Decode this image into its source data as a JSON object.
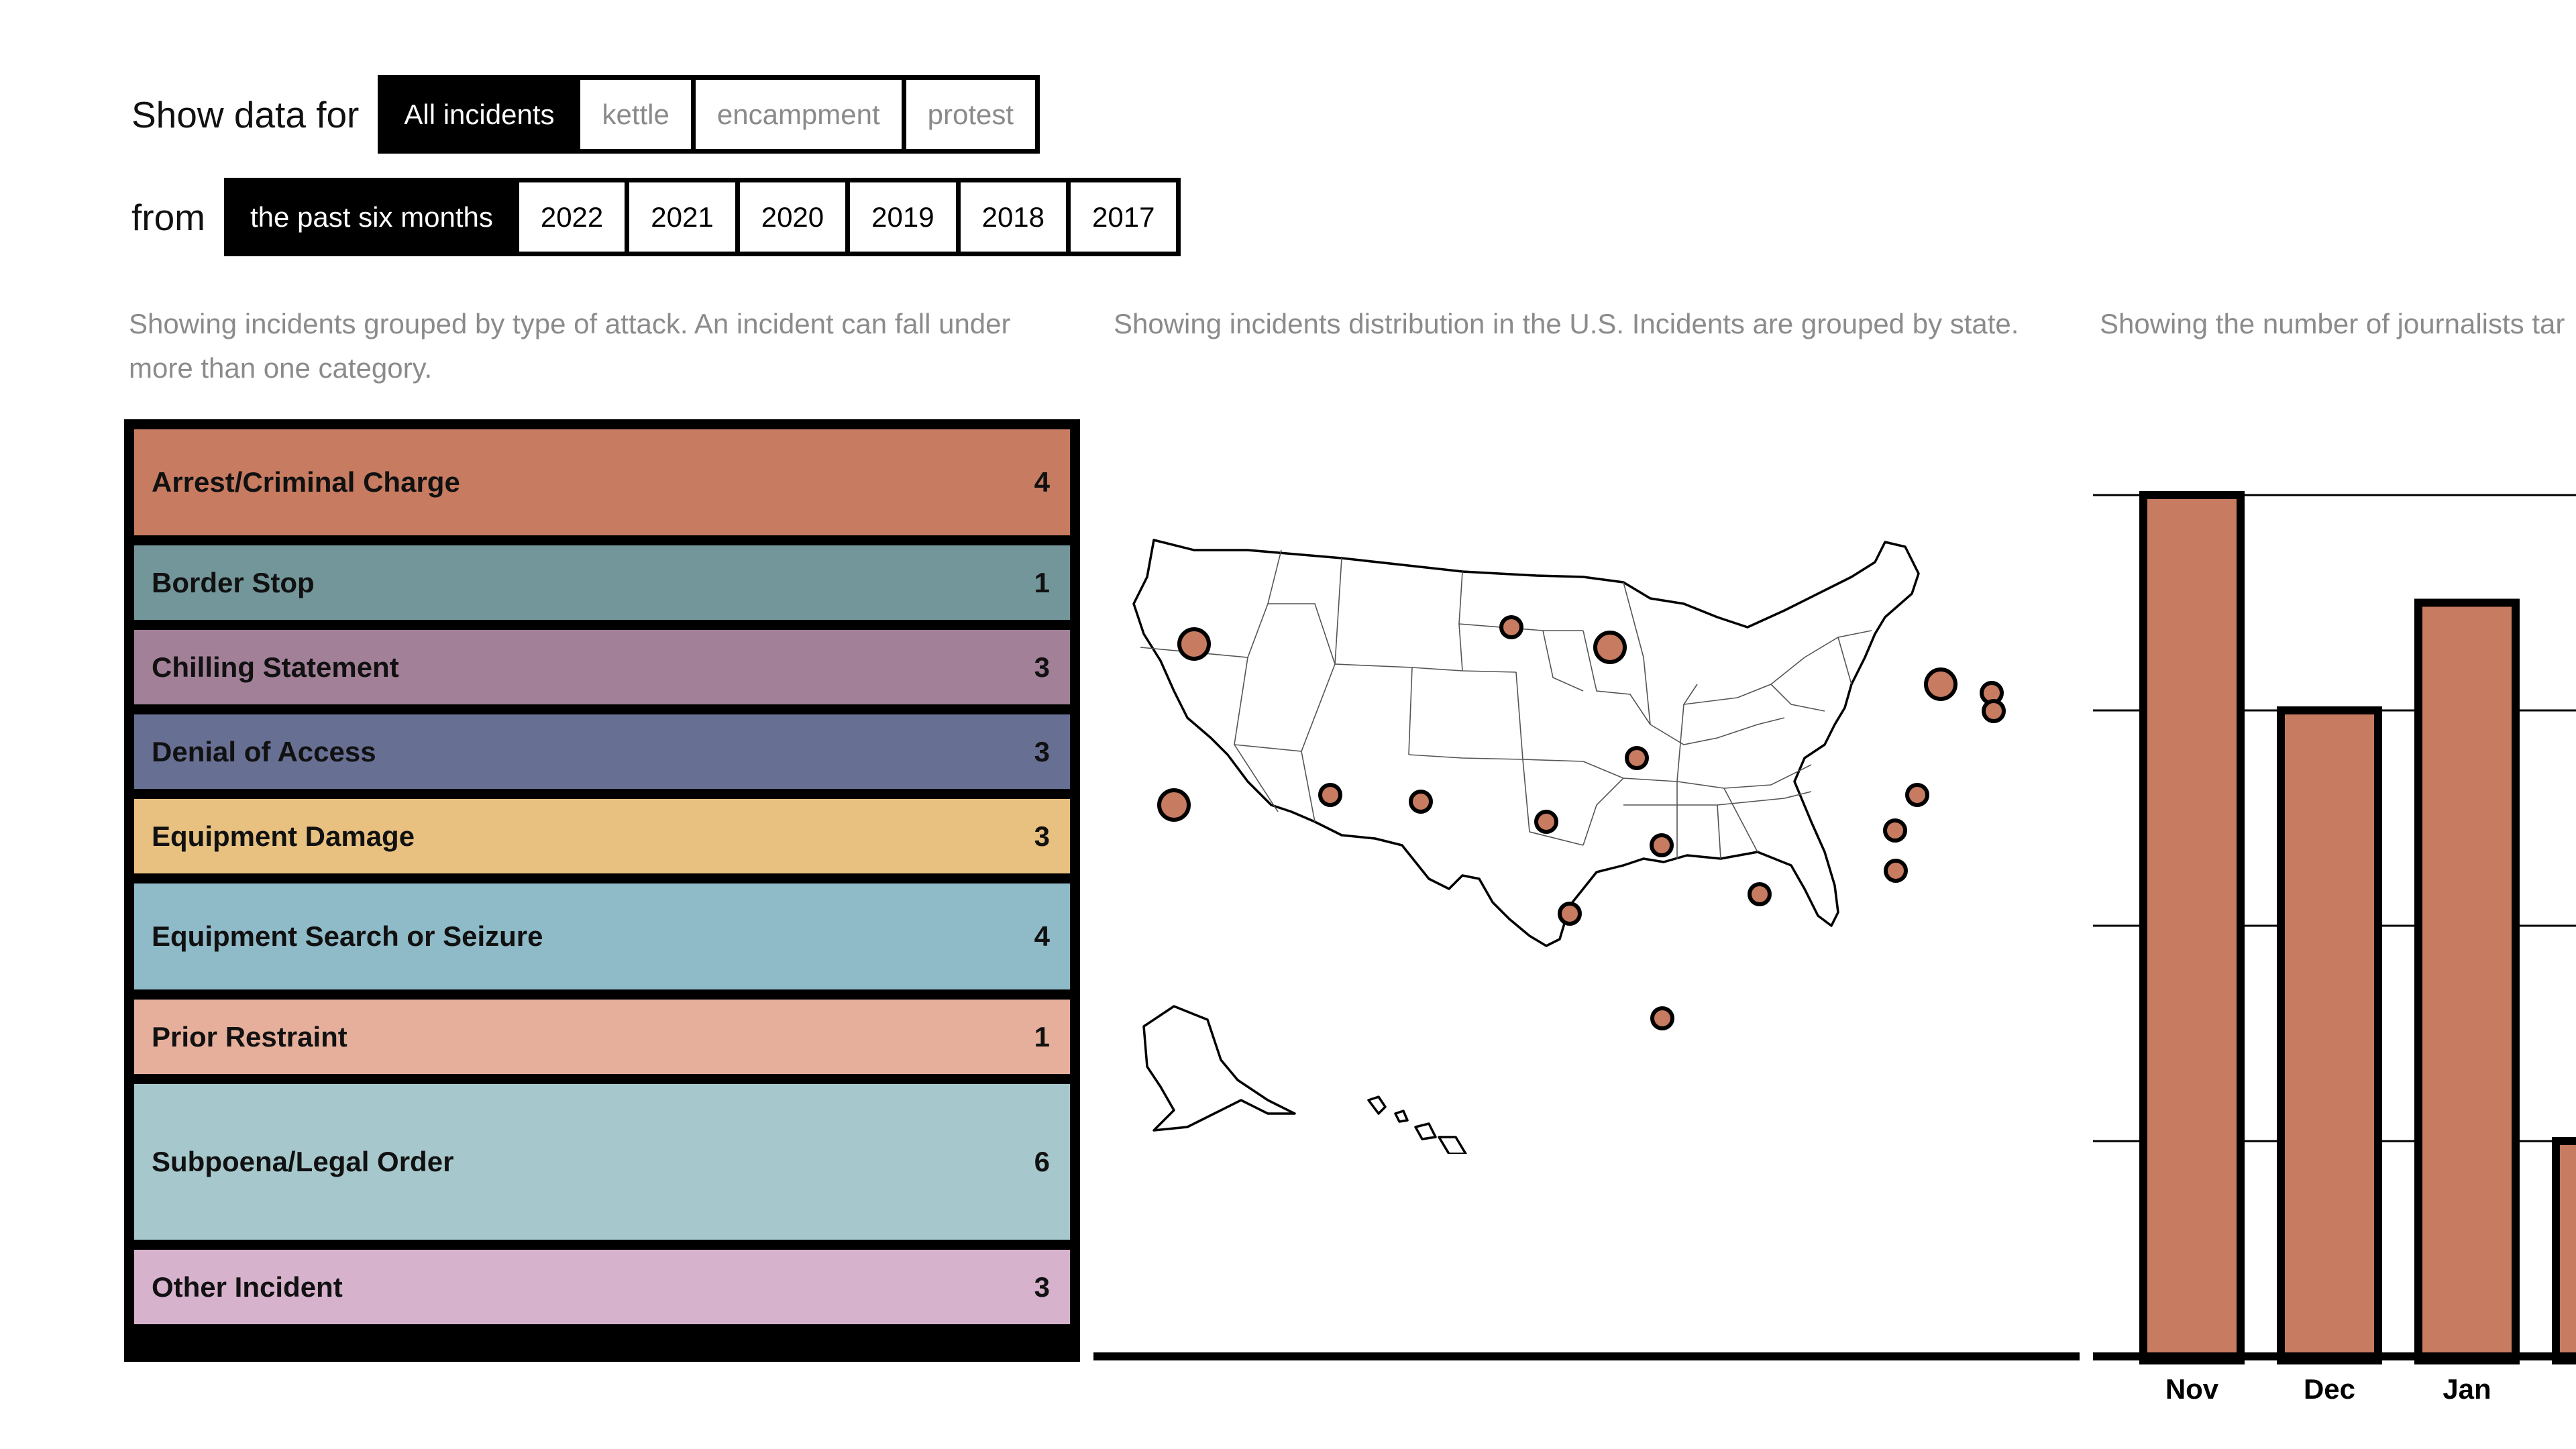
{
  "filters": {
    "show_label": "Show data for",
    "types": [
      {
        "label": "All incidents",
        "active": true
      },
      {
        "label": "kettle",
        "active": false
      },
      {
        "label": "encampment",
        "active": false
      },
      {
        "label": "protest",
        "active": false
      }
    ],
    "from_label": "from",
    "periods": [
      {
        "label": "the past six months",
        "active": true
      },
      {
        "label": "2022",
        "active": false
      },
      {
        "label": "2021",
        "active": false
      },
      {
        "label": "2020",
        "active": false
      },
      {
        "label": "2019",
        "active": false
      },
      {
        "label": "2018",
        "active": false
      },
      {
        "label": "2017",
        "active": false
      }
    ]
  },
  "captions": {
    "categories_line1": "Showing incidents grouped by type of attack. An incident can fall under",
    "categories_line2": "more than one category.",
    "map": "Showing incidents distribution in the U.S. Incidents are grouped by state.",
    "chart": "Showing the number of journalists tar"
  },
  "categories": [
    {
      "label": "Arrest/Criminal Charge",
      "count": 4,
      "color": "#c77b61"
    },
    {
      "label": "Border Stop",
      "count": 1,
      "color": "#73969a"
    },
    {
      "label": "Chilling Statement",
      "count": 3,
      "color": "#a28198"
    },
    {
      "label": "Denial of Access",
      "count": 3,
      "color": "#676f93"
    },
    {
      "label": "Equipment Damage",
      "count": 3,
      "color": "#e8c180"
    },
    {
      "label": "Equipment Search or Seizure",
      "count": 4,
      "color": "#8fbac7"
    },
    {
      "label": "Prior Restraint",
      "count": 1,
      "color": "#e6af9c"
    },
    {
      "label": "Subpoena/Legal Order",
      "count": 6,
      "color": "#a6c8cc"
    },
    {
      "label": "Other Incident",
      "count": 3,
      "color": "#d7b2cd"
    }
  ],
  "map": {
    "marker_color": "#c77b61",
    "markers": [
      {
        "state": "OR",
        "size": "large"
      },
      {
        "state": "CA",
        "size": "large"
      },
      {
        "state": "UT",
        "size": "small"
      },
      {
        "state": "CO",
        "size": "small"
      },
      {
        "state": "ND",
        "size": "small"
      },
      {
        "state": "MN",
        "size": "large"
      },
      {
        "state": "IA",
        "size": "small"
      },
      {
        "state": "KS",
        "size": "small"
      },
      {
        "state": "MO",
        "size": "small"
      },
      {
        "state": "OK",
        "size": "small"
      },
      {
        "state": "LA",
        "size": "small"
      },
      {
        "state": "TN",
        "size": "small"
      },
      {
        "state": "NY",
        "size": "large"
      },
      {
        "state": "MA",
        "size": "small"
      },
      {
        "state": "RI",
        "size": "small"
      },
      {
        "state": "MD",
        "size": "small"
      },
      {
        "state": "VA",
        "size": "small"
      },
      {
        "state": "NC",
        "size": "small"
      }
    ]
  },
  "chart_data": {
    "type": "bar",
    "categories": [
      "Nov",
      "Dec",
      "Jan",
      ""
    ],
    "values": [
      8,
      6,
      7,
      2
    ],
    "ylim": [
      0,
      8
    ],
    "grid": true,
    "bar_color": "#c77b61"
  }
}
